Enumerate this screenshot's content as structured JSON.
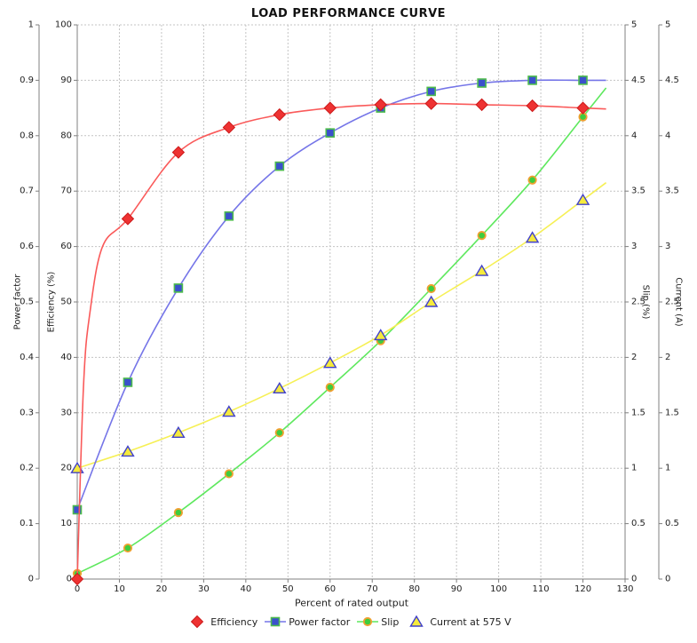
{
  "chart_data": {
    "type": "line",
    "title": "LOAD PERFORMANCE CURVE",
    "xlabel": "Percent of rated output",
    "x": [
      0,
      12,
      24,
      36,
      48,
      60,
      72,
      84,
      96,
      108,
      120
    ],
    "x_axis": {
      "min": 0,
      "max": 130,
      "tick_step": 10
    },
    "y_axes": [
      {
        "id": "power_factor",
        "label": "Power factor",
        "side": "left",
        "min": 0,
        "max": 1,
        "tick_step": 0.1
      },
      {
        "id": "efficiency",
        "label": "Efficiency (%)",
        "side": "left",
        "min": 0,
        "max": 100,
        "tick_step": 10
      },
      {
        "id": "slip",
        "label": "Slip (%)",
        "side": "right",
        "min": 0,
        "max": 5,
        "tick_step": 0.5
      },
      {
        "id": "current",
        "label": "Current (A)",
        "side": "right",
        "min": 0,
        "max": 5,
        "tick_step": 0.5
      }
    ],
    "grid": true,
    "legend_position": "bottom",
    "background": "#ffffff",
    "grid_color": "#c4c4c4",
    "axis_color": "#808080",
    "text_color": "#1a1a1a",
    "series": [
      {
        "name": "Efficiency",
        "axis": "efficiency",
        "marker": "diamond",
        "line_color": "#fa5a5a",
        "marker_fill": "#ee3232",
        "marker_stroke": "#cc1a1a",
        "legend_stub": false,
        "values": [
          0,
          65,
          77,
          81.5,
          83.8,
          85,
          85.6,
          85.8,
          85.6,
          85.4,
          85
        ],
        "curve_anchors": [
          [
            1.5,
            35
          ],
          [
            3,
            48
          ],
          [
            6,
            60
          ]
        ]
      },
      {
        "name": "Power factor",
        "axis": "power_factor",
        "marker": "square",
        "line_color": "#7575e8",
        "marker_fill": "#3a50cc",
        "marker_stroke": "#4dbb4d",
        "legend_stub": true,
        "values": [
          0.125,
          0.355,
          0.525,
          0.655,
          0.745,
          0.805,
          0.85,
          0.88,
          0.895,
          0.9,
          0.9
        ]
      },
      {
        "name": "Slip",
        "axis": "slip",
        "marker": "circle",
        "line_color": "#5ee85e",
        "marker_fill": "#3ecc3e",
        "marker_stroke": "#f0a030",
        "legend_stub": true,
        "values": [
          0.05,
          0.28,
          0.6,
          0.95,
          1.32,
          1.73,
          2.15,
          2.62,
          3.1,
          3.6,
          4.17
        ]
      },
      {
        "name": "Current at 575 V",
        "axis": "current",
        "marker": "triangle",
        "line_color": "#f6f055",
        "marker_fill": "#f5ea3c",
        "marker_stroke": "#4040cc",
        "legend_stub": false,
        "values": [
          1.0,
          1.15,
          1.32,
          1.51,
          1.72,
          1.95,
          2.2,
          2.5,
          2.78,
          3.08,
          3.42
        ]
      }
    ],
    "draw_order": [
      2,
      3,
      1,
      0
    ],
    "curve_overshoot_x": 5.5
  }
}
